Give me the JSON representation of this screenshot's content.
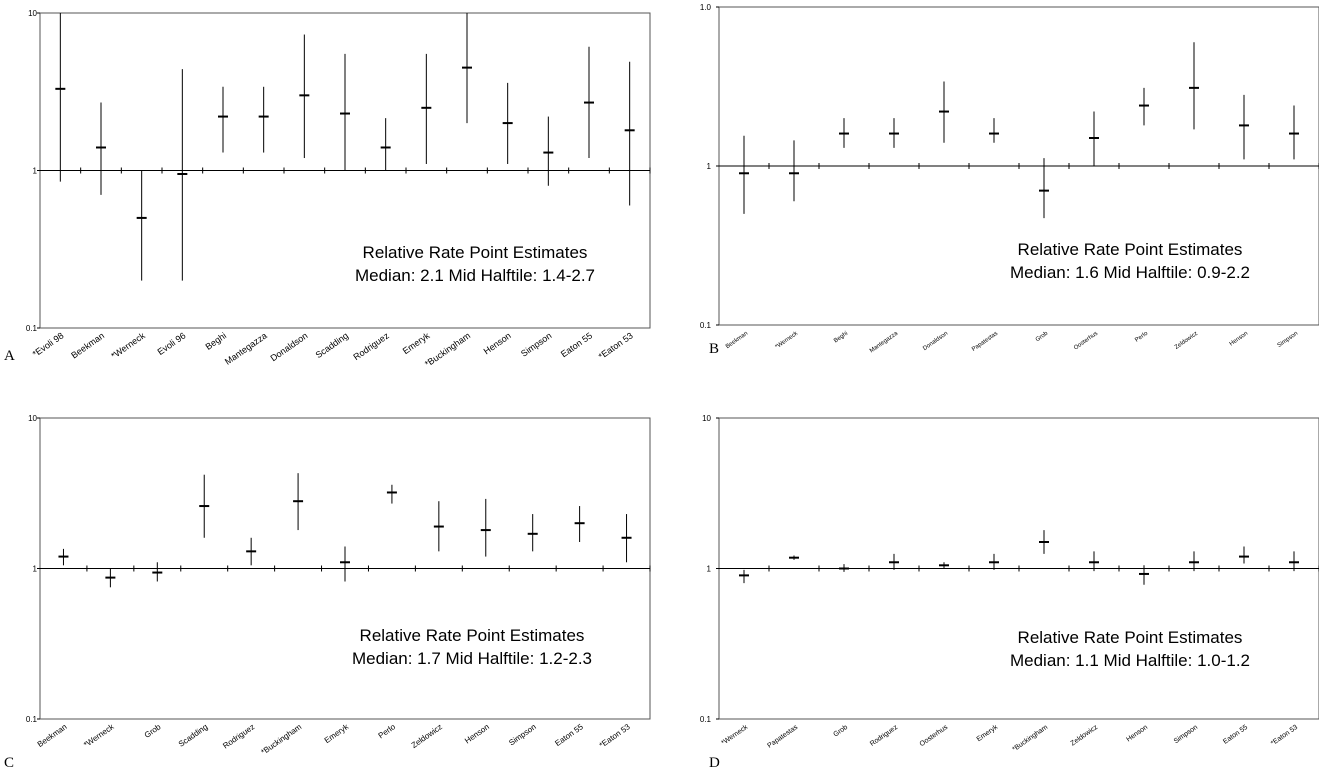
{
  "chart_data": [
    {
      "panel_label": "A",
      "type": "scatter",
      "y_scale": "log",
      "ylim": [
        0.1,
        10
      ],
      "yticks": [
        "10",
        "1",
        "0.1"
      ],
      "categories": [
        "*Evoli 98",
        "Beekman",
        "*Werneck",
        "Evoli 96",
        "Beghi",
        "Mantegazza",
        "Donaldson",
        "Scadding",
        "Rodriguez",
        "Emeryk",
        "*Buckingham",
        "Henson",
        "Simpson",
        "Eaton 55",
        "*Eaton 53"
      ],
      "point": [
        3.3,
        1.4,
        0.5,
        0.95,
        2.2,
        2.2,
        3.0,
        2.3,
        1.4,
        2.5,
        4.5,
        2.0,
        1.3,
        2.7,
        1.8
      ],
      "lower": [
        0.85,
        0.7,
        0.2,
        0.2,
        1.3,
        1.3,
        1.2,
        1.0,
        1.0,
        1.1,
        2.0,
        1.1,
        0.8,
        1.2,
        0.6
      ],
      "upper": [
        10,
        2.7,
        1.0,
        4.4,
        3.4,
        3.4,
        7.3,
        5.5,
        2.15,
        5.5,
        10,
        3.6,
        2.2,
        6.1,
        4.9
      ],
      "annotation_line1": "Relative Rate Point Estimates",
      "annotation_line2": "Median: 2.1    Mid Halftile: 1.4-2.7"
    },
    {
      "panel_label": "B",
      "type": "scatter",
      "y_scale": "log",
      "ylim": [
        0.1,
        1.0
      ],
      "yticks": [
        "1.0",
        "1",
        "0.1"
      ],
      "categories": [
        "Beekman",
        "*Werneck",
        "Beghi",
        "Mantegazza",
        "Donaldson",
        "Papatestas",
        "Grob",
        "Oosterhus",
        "Perlo",
        "Zeldowicz",
        "Henson",
        "Simpson"
      ],
      "point": [
        0.9,
        0.9,
        1.6,
        1.6,
        2.2,
        1.6,
        0.7,
        1.5,
        2.4,
        3.1,
        1.8,
        1.6
      ],
      "lower": [
        0.5,
        0.6,
        1.3,
        1.3,
        1.4,
        1.4,
        0.47,
        1.0,
        1.8,
        1.7,
        1.1,
        1.1
      ],
      "upper": [
        1.55,
        1.45,
        2.0,
        2.0,
        3.4,
        2.0,
        1.12,
        2.2,
        3.1,
        6.0,
        2.8,
        2.4
      ],
      "annotation_line1": "Relative Rate Point Estimates",
      "annotation_line2": "Median: 1.6    Mid Halftile: 0.9-2.2"
    },
    {
      "panel_label": "C",
      "type": "scatter",
      "y_scale": "log",
      "ylim": [
        0.1,
        10
      ],
      "yticks": [
        "10",
        "1",
        "0.1"
      ],
      "categories": [
        "Beekman",
        "*Werneck",
        "Grob",
        "Scadding",
        "Rodriguez",
        "*Buckingham",
        "Emeryk",
        "Perlo",
        "Zeldowicz",
        "Henson",
        "Simpson",
        "Eaton 55",
        "*Eaton 53"
      ],
      "point": [
        1.2,
        0.87,
        0.94,
        2.6,
        1.3,
        2.8,
        1.1,
        3.2,
        1.9,
        1.8,
        1.7,
        2.0,
        1.6
      ],
      "lower": [
        1.05,
        0.75,
        0.82,
        1.6,
        1.05,
        1.8,
        0.82,
        2.7,
        1.3,
        1.2,
        1.3,
        1.5,
        1.1
      ],
      "upper": [
        1.35,
        1.0,
        1.1,
        4.2,
        1.6,
        4.3,
        1.4,
        3.6,
        2.8,
        2.9,
        2.3,
        2.6,
        2.3
      ],
      "annotation_line1": "Relative Rate Point Estimates",
      "annotation_line2": "Median: 1.7    Mid Halftile: 1.2-2.3"
    },
    {
      "panel_label": "D",
      "type": "scatter",
      "y_scale": "log",
      "ylim": [
        0.1,
        10
      ],
      "yticks": [
        "10",
        "1",
        "0.1"
      ],
      "categories": [
        "*Werneck",
        "Papatestas",
        "Grob",
        "Rodriguez",
        "Oosterhus",
        "Emeryk",
        "*Buckingham",
        "Zeldowicz",
        "Henson",
        "Simpson",
        "Eaton 55",
        "*Eaton 53"
      ],
      "point": [
        0.9,
        1.18,
        1.0,
        1.1,
        1.05,
        1.1,
        1.5,
        1.1,
        0.92,
        1.1,
        1.2,
        1.1
      ],
      "lower": [
        0.8,
        1.14,
        0.95,
        0.98,
        1.0,
        0.98,
        1.25,
        0.96,
        0.78,
        0.96,
        1.08,
        0.96
      ],
      "upper": [
        0.98,
        1.22,
        1.07,
        1.25,
        1.1,
        1.25,
        1.8,
        1.3,
        1.05,
        1.3,
        1.4,
        1.3
      ],
      "annotation_line1": "Relative Rate Point Estimates",
      "annotation_line2": "Median: 1.1    Mid Halftile: 1.0-1.2"
    }
  ]
}
